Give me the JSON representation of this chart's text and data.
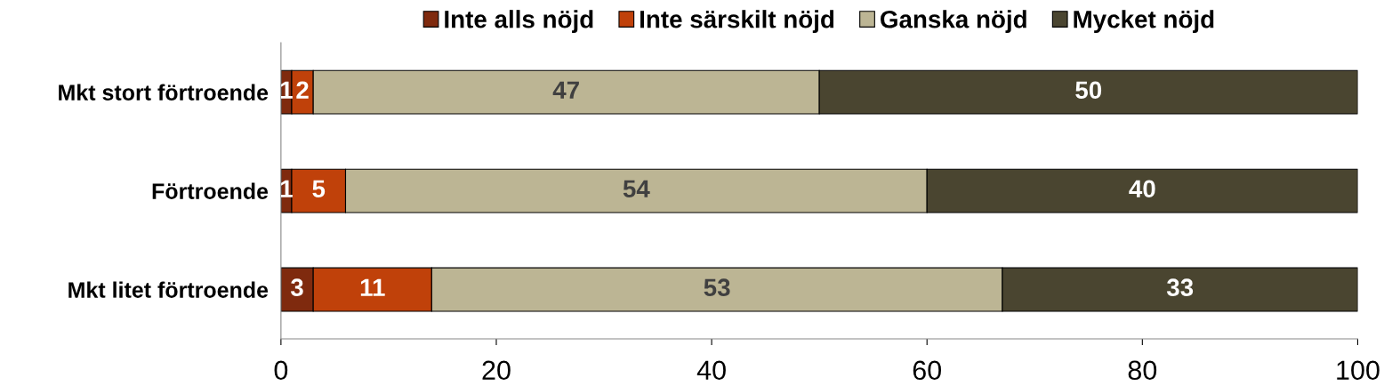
{
  "chart_data": {
    "type": "bar",
    "orientation": "horizontal",
    "stacked": true,
    "categories": [
      "Mkt stort förtroende",
      "Förtroende",
      "Mkt litet förtroende"
    ],
    "series": [
      {
        "name": "Inte alls nöjd",
        "color": "#7f2a0e",
        "values": [
          1,
          1,
          3
        ]
      },
      {
        "name": "Inte särskilt nöjd",
        "color": "#c0410a",
        "values": [
          2,
          5,
          11
        ]
      },
      {
        "name": "Ganska nöjd",
        "color": "#bcb594",
        "values": [
          47,
          54,
          53
        ]
      },
      {
        "name": "Mycket nöjd",
        "color": "#4a4530",
        "values": [
          50,
          40,
          33
        ]
      }
    ],
    "xlim": [
      0,
      100
    ],
    "xticks": [
      0,
      20,
      40,
      60,
      80,
      100
    ],
    "data_labels": true,
    "legend": "top",
    "grid": false
  }
}
